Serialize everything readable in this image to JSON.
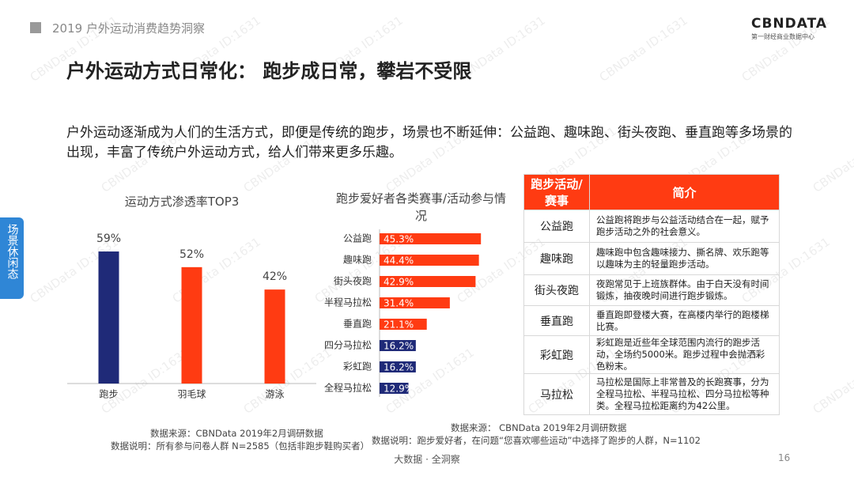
{
  "header": {
    "subtitle": "2019 户外运动消费趋势洞察",
    "logo": "CBNDATA",
    "logo_caption": "第一财经商业数据中心",
    "title": "户外运动方式日常化： 跑步成日常，攀岩不受限"
  },
  "intro": "户外运动逐渐成为人们的生活方式，即便是传统的跑步，场景也不断延伸：公益跑、趣味跑、街头夜跑、垂直跑等多场景的出现，丰富了传统户外运动方式，给人们带来更多乐趣。",
  "side_tab": "场景休闲态",
  "watermark": "CBNData ID:1631",
  "chart_data": [
    {
      "type": "bar",
      "title": "运动方式渗透率TOP3",
      "categories": [
        "跑步",
        "羽毛球",
        "游泳"
      ],
      "values": [
        59,
        52,
        42
      ],
      "value_labels": [
        "59%",
        "52%",
        "42%"
      ],
      "colors": [
        "#1f2a78",
        "#ff3b12",
        "#ff3b12"
      ]
    },
    {
      "type": "hbar",
      "title": "跑步爱好者各类赛事/活动参与情况",
      "categories": [
        "公益跑",
        "趣味跑",
        "街头夜跑",
        "半程马拉松",
        "垂直跑",
        "四分马拉松",
        "彩虹跑",
        "全程马拉松"
      ],
      "values": [
        45.3,
        44.4,
        42.9,
        31.4,
        21.1,
        16.2,
        16.2,
        12.9
      ],
      "value_labels": [
        "45.3%",
        "44.4%",
        "42.9%",
        "31.4%",
        "21.1%",
        "16.2%",
        "16.2%",
        "12.9%"
      ],
      "colors": [
        "#ff3b12",
        "#ff3b12",
        "#ff3b12",
        "#ff3b12",
        "#ff3b12",
        "#1f2a78",
        "#1f2a78",
        "#1f2a78"
      ]
    }
  ],
  "notes": {
    "left": [
      "数据来源：CBNData 2019年2月调研数据",
      "数据说明：所有参与问卷人群 N=2585（包括非跑步鞋购买者）"
    ],
    "middle": [
      "数据来源： CBNData 2019年2月调研数据",
      "数据说明：跑步爱好者，在问题“您喜欢哪些运动”中选择了跑步的人群，N=1102"
    ]
  },
  "table": {
    "header": [
      "跑步活动/赛事",
      "简介"
    ],
    "rows": [
      [
        "公益跑",
        "公益跑将跑步与公益活动结合在一起，赋予跑步活动之外的社会意义。"
      ],
      [
        "趣味跑",
        "趣味跑中包含趣味接力、撕名牌、欢乐跑等以趣味为主的轻量跑步活动。"
      ],
      [
        "街头夜跑",
        "夜跑常见于上班族群体。由于白天没有时间锻炼，抽夜晚时间进行跑步锻炼。"
      ],
      [
        "垂直跑",
        "垂直跑即登楼大赛，在高楼内举行的跑楼梯比赛。"
      ],
      [
        "彩虹跑",
        "彩虹跑是近些年全球范围内流行的跑步活动，全场约5000米。跑步过程中会抛洒彩色粉末。"
      ],
      [
        "马拉松",
        "马拉松是国际上非常普及的长跑赛事，分为全程马拉松、半程马拉松、四分马拉松等种类。全程马拉松距离约为42公里。"
      ]
    ]
  },
  "footer": {
    "slogan": "大数据 · 全洞察",
    "page": "16"
  }
}
